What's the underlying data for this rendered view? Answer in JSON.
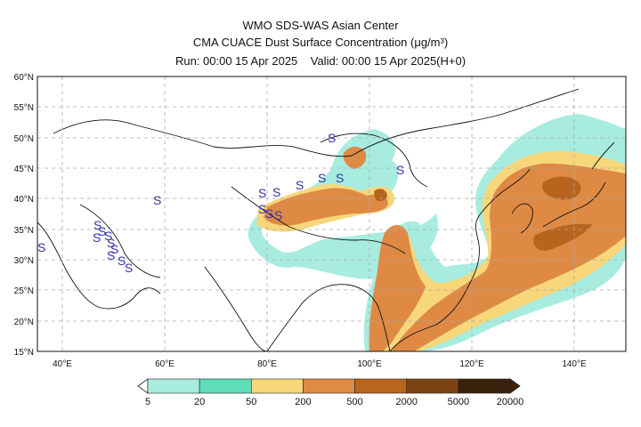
{
  "header": {
    "title": "WMO SDS-WAS Asian Center",
    "subtitle": "CMA CUACE Dust Surface Concentration (μg/m³)",
    "run": "Run: 00:00 15 Apr 2025",
    "valid": "Valid: 00:00 15 Apr 2025(H+0)"
  },
  "map": {
    "lon_range": [
      35,
      150
    ],
    "lat_range": [
      15,
      60
    ],
    "lat_ticks": [
      "15°N",
      "20°N",
      "25°N",
      "30°N",
      "35°N",
      "40°N",
      "45°N",
      "50°N",
      "55°N",
      "60°N"
    ],
    "lon_ticks": [
      "40°E",
      "60°E",
      "80°E",
      "100°E",
      "120°E",
      "140°E"
    ],
    "grid": "dashed"
  },
  "colorbar": {
    "levels": [
      "5",
      "20",
      "50",
      "200",
      "500",
      "2000",
      "5000",
      "20000"
    ],
    "colors": [
      "#a8ece0",
      "#5fdcb8",
      "#f7d77a",
      "#de8a45",
      "#b7651e",
      "#7b4414",
      "#3b220c"
    ]
  },
  "markers": {
    "symbol": "S",
    "color": "#3333aa"
  }
}
